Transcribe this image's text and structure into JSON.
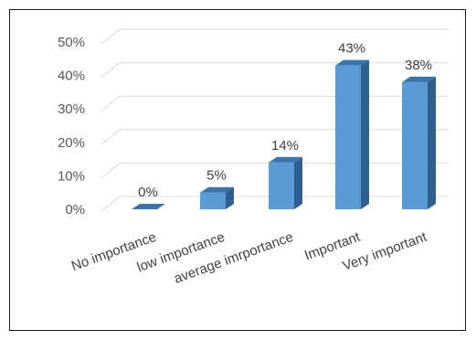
{
  "chart_data": {
    "type": "bar",
    "style": "3d-column",
    "categories": [
      "No importance",
      "low importance",
      "average imrportance",
      "Important",
      "Very important"
    ],
    "values": [
      0,
      5,
      14,
      43,
      38
    ],
    "data_labels": [
      "0%",
      "5%",
      "14%",
      "43%",
      "38%"
    ],
    "ylim": [
      0,
      50
    ],
    "yticks": [
      "0%",
      "10%",
      "20%",
      "30%",
      "40%",
      "50%"
    ],
    "grid": true,
    "legend": "none",
    "bar_color": "#5b9bd5",
    "bar_side_color": "#2e5f8e",
    "bar_top_color": "#3a74ab",
    "title": "",
    "xlabel": "",
    "ylabel": ""
  }
}
